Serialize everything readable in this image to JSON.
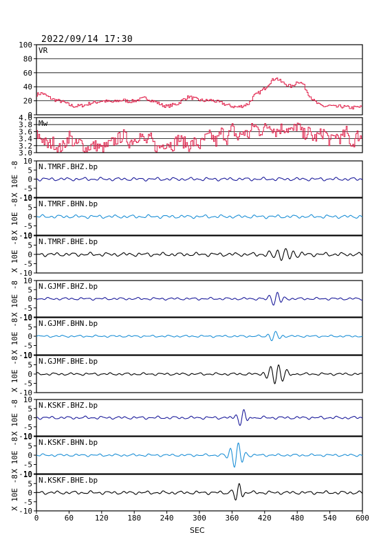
{
  "header": {
    "timestamp": "2022/09/14  17:30"
  },
  "chart_data": {
    "type": "line",
    "xlabel": "SEC",
    "xlim": [
      0,
      600
    ],
    "xticks": [
      0,
      60,
      120,
      180,
      240,
      300,
      360,
      420,
      480,
      540,
      600
    ],
    "colors": {
      "red": "#e0204a",
      "navy": "#1a1a9a",
      "cyan": "#1c8fd6",
      "black": "#000000"
    },
    "panels": [
      {
        "id": "vr",
        "label": "VR",
        "color": "#e0204a",
        "ylim": [
          0,
          100
        ],
        "yticks": [
          0,
          20,
          40,
          60,
          80,
          100
        ],
        "ytick_labels": [
          "0",
          "20",
          "40",
          "60",
          "80",
          "100"
        ],
        "grid": true,
        "kind": "step",
        "x": [
          0,
          10,
          20,
          30,
          40,
          50,
          60,
          70,
          80,
          90,
          100,
          110,
          120,
          130,
          140,
          150,
          160,
          170,
          180,
          190,
          200,
          210,
          220,
          230,
          240,
          250,
          260,
          270,
          280,
          290,
          300,
          310,
          320,
          330,
          340,
          350,
          360,
          370,
          380,
          390,
          400,
          410,
          420,
          430,
          440,
          450,
          460,
          470,
          480,
          490,
          500,
          510,
          520,
          530,
          540,
          550,
          560,
          570,
          580,
          590,
          600
        ],
        "y": [
          29,
          31,
          26,
          22,
          20,
          18,
          14,
          12,
          13,
          14,
          17,
          18,
          20,
          19,
          18,
          20,
          21,
          19,
          20,
          22,
          24,
          21,
          18,
          14,
          12,
          14,
          16,
          22,
          26,
          23,
          21,
          20,
          21,
          19,
          17,
          14,
          12,
          11,
          13,
          16,
          27,
          32,
          38,
          47,
          53,
          47,
          43,
          40,
          48,
          44,
          30,
          20,
          14,
          12,
          13,
          11,
          12,
          11,
          10,
          11,
          11
        ]
      },
      {
        "id": "mw",
        "label": "Mw",
        "color": "#e0204a",
        "ylim": [
          3.0,
          4.0
        ],
        "yticks": [
          3.0,
          3.2,
          3.4,
          3.6,
          3.8,
          4.0
        ],
        "ytick_labels": [
          "3.0",
          "3.2",
          "3.4",
          "3.6",
          "3.8",
          "4.0"
        ],
        "grid": true,
        "kind": "step",
        "x": [
          0,
          10,
          20,
          30,
          40,
          50,
          60,
          70,
          80,
          90,
          100,
          110,
          120,
          130,
          140,
          150,
          160,
          170,
          180,
          190,
          200,
          210,
          220,
          230,
          240,
          250,
          260,
          270,
          280,
          290,
          300,
          310,
          320,
          330,
          340,
          350,
          360,
          370,
          380,
          390,
          400,
          410,
          420,
          430,
          440,
          450,
          460,
          470,
          480,
          490,
          500,
          510,
          520,
          530,
          540,
          550,
          560,
          570,
          580,
          590,
          600
        ],
        "y": [
          3.5,
          3.4,
          3.2,
          3.3,
          3.1,
          3.2,
          3.5,
          3.2,
          3.3,
          3.1,
          3.2,
          3.2,
          3.1,
          3.2,
          3.3,
          3.4,
          3.5,
          3.3,
          3.4,
          3.5,
          3.3,
          3.4,
          3.1,
          3.2,
          3.3,
          3.2,
          3.4,
          3.3,
          3.2,
          3.3,
          3.2,
          3.4,
          3.5,
          3.3,
          3.6,
          3.4,
          3.7,
          3.4,
          3.6,
          3.5,
          3.8,
          3.6,
          3.7,
          3.8,
          3.6,
          3.7,
          3.7,
          3.6,
          3.8,
          3.5,
          3.6,
          3.4,
          3.5,
          3.6,
          3.3,
          3.5,
          3.4,
          3.6,
          3.2,
          3.5,
          3.4
        ]
      },
      {
        "id": "tmrf-bhz",
        "label": "N.TMRF.BHZ.bp",
        "color": "#1a1a9a",
        "kind": "wave",
        "ylim": [
          -10,
          10
        ],
        "yticks": [
          -10,
          -5,
          0,
          5,
          10
        ],
        "ytick_labels": [
          "-10",
          "-5",
          "0",
          "5",
          "10"
        ],
        "ylabel": "X 10E -8",
        "amp": 0.8,
        "events": []
      },
      {
        "id": "tmrf-bhn",
        "label": "N.TMRF.BHN.bp",
        "color": "#1c8fd6",
        "kind": "wave",
        "ylim": [
          -10,
          10
        ],
        "yticks": [
          -10,
          -5,
          0,
          5,
          10
        ],
        "ytick_labels": [
          "-10",
          "-5",
          "0",
          "5",
          "10"
        ],
        "ylabel": "X 10E -8",
        "amp": 0.8,
        "events": []
      },
      {
        "id": "tmrf-bhe",
        "label": "N.TMRF.BHE.bp",
        "color": "#000000",
        "kind": "wave",
        "ylim": [
          -10,
          10
        ],
        "yticks": [
          -10,
          -5,
          0,
          5,
          10
        ],
        "ytick_labels": [
          "-10",
          "-5",
          "0",
          "5",
          "10"
        ],
        "ylabel": "X 10E -8",
        "amp": 0.9,
        "events": [
          {
            "t": 455,
            "a": 2.5,
            "w": 25
          }
        ]
      },
      {
        "id": "gjmf-bhz",
        "label": "N.GJMF.BHZ.bp",
        "color": "#1a1a9a",
        "kind": "wave",
        "ylim": [
          -10,
          10
        ],
        "yticks": [
          -10,
          -5,
          0,
          5,
          10
        ],
        "ytick_labels": [
          "-10",
          "-5",
          "0",
          "5",
          "10"
        ],
        "ylabel": "X 10E -8",
        "amp": 0.6,
        "events": [
          {
            "t": 440,
            "a": 3.5,
            "w": 14
          }
        ]
      },
      {
        "id": "gjmf-bhn",
        "label": "N.GJMF.BHN.bp",
        "color": "#1c8fd6",
        "kind": "wave",
        "ylim": [
          -10,
          10
        ],
        "yticks": [
          -10,
          -5,
          0,
          5,
          10
        ],
        "ytick_labels": [
          "-10",
          "-5",
          "0",
          "5",
          "10"
        ],
        "ylabel": "X 10E -8",
        "amp": 0.5,
        "events": [
          {
            "t": 437,
            "a": 2.5,
            "w": 12
          }
        ]
      },
      {
        "id": "gjmf-bhe",
        "label": "N.GJMF.BHE.bp",
        "color": "#000000",
        "kind": "wave",
        "ylim": [
          -10,
          10
        ],
        "yticks": [
          -10,
          -5,
          0,
          5,
          10
        ],
        "ytick_labels": [
          "-10",
          "-5",
          "0",
          "5",
          "10"
        ],
        "ylabel": "X 10E -8",
        "amp": 0.6,
        "events": [
          {
            "t": 442,
            "a": 5.5,
            "w": 20
          }
        ]
      },
      {
        "id": "kskf-bhz",
        "label": "N.KSKF.BHZ.bp",
        "color": "#1a1a9a",
        "kind": "wave",
        "ylim": [
          -10,
          10
        ],
        "yticks": [
          -10,
          -5,
          0,
          5,
          10
        ],
        "ytick_labels": [
          "-10",
          "-5",
          "0",
          "5",
          "10"
        ],
        "ylabel": "X 10E -8",
        "amp": 0.7,
        "events": [
          {
            "t": 378,
            "a": 5.0,
            "w": 12
          }
        ]
      },
      {
        "id": "kskf-bhn",
        "label": "N.KSKF.BHN.bp",
        "color": "#1c8fd6",
        "kind": "wave",
        "ylim": [
          -10,
          10
        ],
        "yticks": [
          -10,
          -5,
          0,
          5,
          10
        ],
        "ytick_labels": [
          "-10",
          "-5",
          "0",
          "5",
          "10"
        ],
        "ylabel": "X 10E -8",
        "amp": 0.6,
        "events": [
          {
            "t": 368,
            "a": 6.5,
            "w": 14
          }
        ]
      },
      {
        "id": "kskf-bhe",
        "label": "N.KSKF.BHE.bp",
        "color": "#000000",
        "kind": "wave",
        "ylim": [
          -10,
          10
        ],
        "yticks": [
          -10,
          -5,
          0,
          5,
          10
        ],
        "ytick_labels": [
          "-10",
          "-5",
          "0",
          "5",
          "10"
        ],
        "ylabel": "X 10E -8",
        "amp": 0.8,
        "events": [
          {
            "t": 370,
            "a": 5.5,
            "w": 10
          }
        ]
      }
    ]
  }
}
